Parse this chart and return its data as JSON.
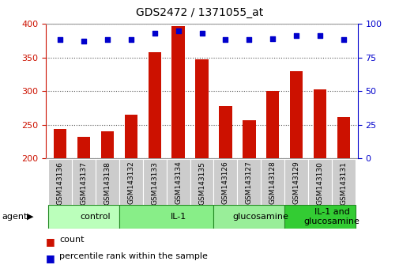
{
  "title": "GDS2472 / 1371055_at",
  "samples": [
    "GSM143136",
    "GSM143137",
    "GSM143138",
    "GSM143132",
    "GSM143133",
    "GSM143134",
    "GSM143135",
    "GSM143126",
    "GSM143127",
    "GSM143128",
    "GSM143129",
    "GSM143130",
    "GSM143131"
  ],
  "counts": [
    243,
    232,
    240,
    265,
    358,
    397,
    347,
    278,
    256,
    300,
    330,
    303,
    261
  ],
  "percentiles": [
    88,
    87,
    88,
    88,
    93,
    95,
    93,
    88,
    88,
    89,
    91,
    91,
    88
  ],
  "ylim_left": [
    200,
    400
  ],
  "ylim_right": [
    0,
    100
  ],
  "yticks_left": [
    200,
    250,
    300,
    350,
    400
  ],
  "yticks_right": [
    0,
    25,
    50,
    75,
    100
  ],
  "groups": [
    {
      "label": "control",
      "start": 0,
      "end": 3,
      "color": "#bbffbb"
    },
    {
      "label": "IL-1",
      "start": 3,
      "end": 7,
      "color": "#88ee88"
    },
    {
      "label": "glucosamine",
      "start": 7,
      "end": 10,
      "color": "#99ee99"
    },
    {
      "label": "IL-1 and\nglucosamine",
      "start": 10,
      "end": 13,
      "color": "#33cc33"
    }
  ],
  "bar_color": "#cc1100",
  "dot_color": "#0000cc",
  "bar_bottom": 200,
  "grid_color": "#888888",
  "tick_color_left": "#cc1100",
  "tick_color_right": "#0000cc",
  "tick_label_area_color": "#cccccc",
  "legend_count_color": "#cc1100",
  "legend_pct_color": "#0000cc"
}
